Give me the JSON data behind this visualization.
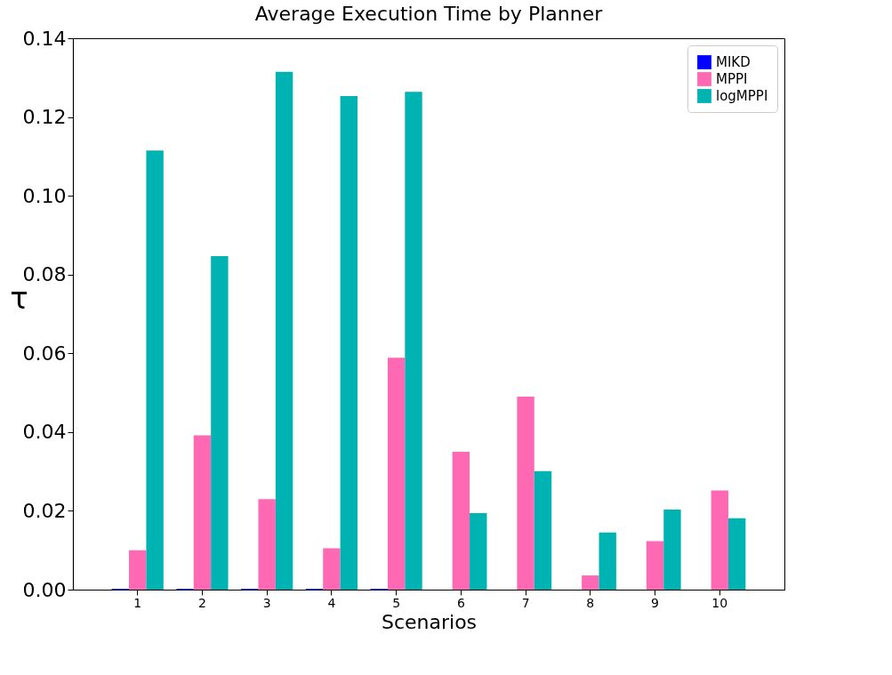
{
  "chart_data": {
    "type": "bar",
    "title": "Average Execution Time by Planner",
    "xlabel": "Scenarios",
    "ylabel": "τ",
    "categories": [
      "1",
      "2",
      "3",
      "4",
      "5",
      "6",
      "7",
      "8",
      "9",
      "10"
    ],
    "series": [
      {
        "name": "MIKD",
        "color": "#0000ff",
        "values": [
          0.0002,
          0.0002,
          0.0002,
          0.0002,
          0.0002,
          null,
          null,
          null,
          null,
          null
        ]
      },
      {
        "name": "MPPI",
        "color": "#ff69b4",
        "values": [
          0.01,
          0.0392,
          0.023,
          0.0105,
          0.0589,
          0.035,
          0.049,
          0.0036,
          0.0123,
          0.0252
        ]
      },
      {
        "name": "logMPPI",
        "color": "#00b3b3",
        "values": [
          0.1115,
          0.0847,
          0.1315,
          0.1253,
          0.1264,
          0.0194,
          0.0301,
          0.0145,
          0.0203,
          0.0181
        ]
      }
    ],
    "ylim": [
      0,
      0.14
    ],
    "yticks": [
      {
        "value": 0,
        "label": "0.00"
      },
      {
        "value": 0.02,
        "label": "0.02"
      },
      {
        "value": 0.04,
        "label": "0.04"
      },
      {
        "value": 0.06,
        "label": "0.06"
      },
      {
        "value": 0.08,
        "label": "0.08"
      },
      {
        "value": 0.1,
        "label": "0.10"
      },
      {
        "value": 0.12,
        "label": "0.12"
      },
      {
        "value": 0.14,
        "label": "0.14"
      }
    ],
    "grid": false,
    "legend": "top right"
  }
}
